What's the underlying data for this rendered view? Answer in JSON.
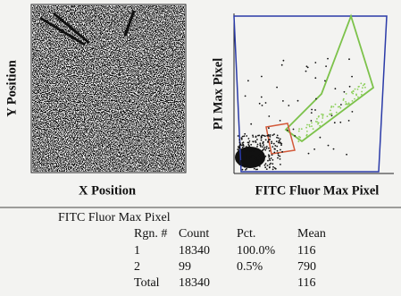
{
  "left_panel": {
    "y_label": "Y Position",
    "x_label": "X Position"
  },
  "right_panel": {
    "y_label": "PI Max Pixel",
    "x_label": "FITC Fluor Max Pixel"
  },
  "table": {
    "title": "FITC Fluor Max Pixel",
    "header": [
      "Rgn. #",
      "Count",
      "Pct.",
      "Mean"
    ],
    "rows": [
      {
        "rgn": "1",
        "count": "18340",
        "pct": "100.0%",
        "mean": "116"
      },
      {
        "rgn": "2",
        "count": "99",
        "pct": "0.5%",
        "mean": "790"
      },
      {
        "rgn": "Total",
        "count": "18340",
        "mean": "116"
      }
    ]
  }
}
